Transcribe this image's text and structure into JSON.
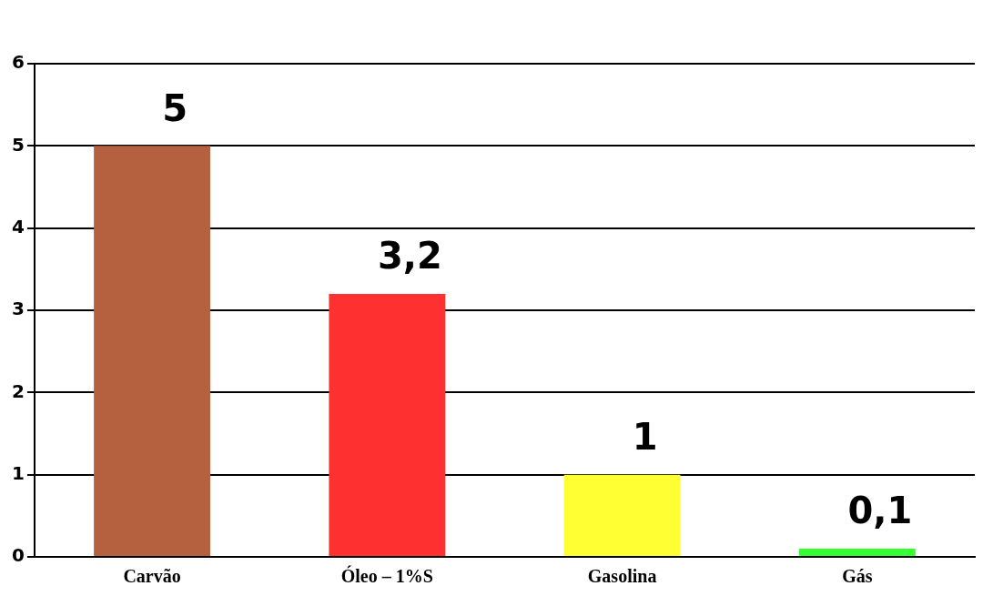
{
  "chart_data": {
    "type": "bar",
    "categories": [
      "Carvão",
      "Óleo – 1%S",
      "Gasolina",
      "Gás"
    ],
    "values": [
      5,
      3.2,
      1,
      0.1
    ],
    "colors": [
      "#b5603f",
      "#ff3030",
      "#ffff33",
      "#33ff33"
    ],
    "value_labels": [
      "5",
      "3,2",
      "1",
      "0,1"
    ],
    "ylim": [
      0,
      6
    ],
    "yticks": [
      0,
      1,
      2,
      3,
      4,
      5,
      6
    ],
    "grid": "y",
    "legend": false
  }
}
